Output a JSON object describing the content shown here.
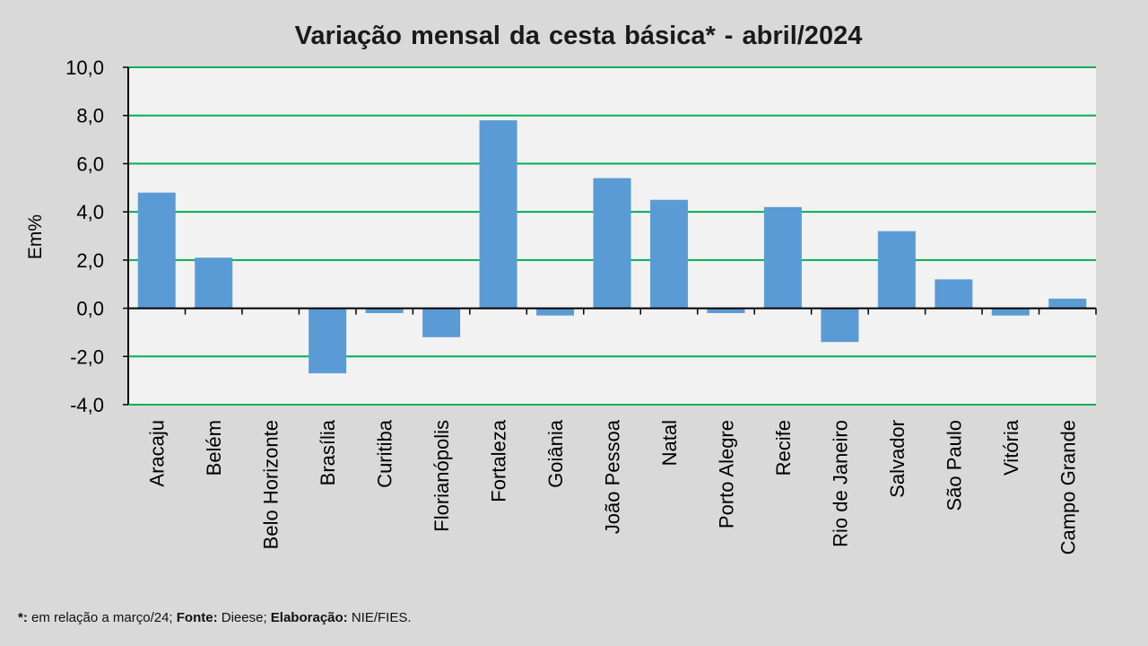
{
  "chart_data": {
    "type": "bar",
    "title": "Variação  mensal da cesta básica* - abril/2024",
    "ylabel": "Em%",
    "xlabel": "",
    "ylim": [
      -4,
      10
    ],
    "yticks": [
      -4,
      -2,
      0,
      2,
      4,
      6,
      8,
      10
    ],
    "ytick_labels": [
      "-4,0",
      "-2,0",
      "0,0",
      "2,0",
      "4,0",
      "6,0",
      "8,0",
      "10,0"
    ],
    "grid": true,
    "colors": {
      "bar": "#5b9bd5",
      "grid": "#00b050",
      "plot_bg": "#f2f2f2",
      "axis": "#000000"
    },
    "categories": [
      "Aracaju",
      "Belém",
      "Belo Horizonte",
      "Brasília",
      "Curitiba",
      "Florianópolis",
      "Fortaleza",
      "Goiânia",
      "João Pessoa",
      "Natal",
      "Porto Alegre",
      "Recife",
      "Rio de Janeiro",
      "Salvador",
      "São Paulo",
      "Vitória",
      "Campo Grande"
    ],
    "values": [
      4.8,
      2.1,
      0.0,
      -2.7,
      -0.2,
      -1.2,
      7.8,
      -0.3,
      5.4,
      4.5,
      -0.2,
      4.2,
      -1.4,
      3.2,
      1.2,
      -0.3,
      0.4
    ]
  },
  "footnote": {
    "asterisk": "*:",
    "asterisk_text": " em relação a março/24; ",
    "fonte_label": "Fonte:",
    "fonte_text": " Dieese; ",
    "elab_label": "Elaboração:",
    "elab_text": " NIE/FIES."
  }
}
